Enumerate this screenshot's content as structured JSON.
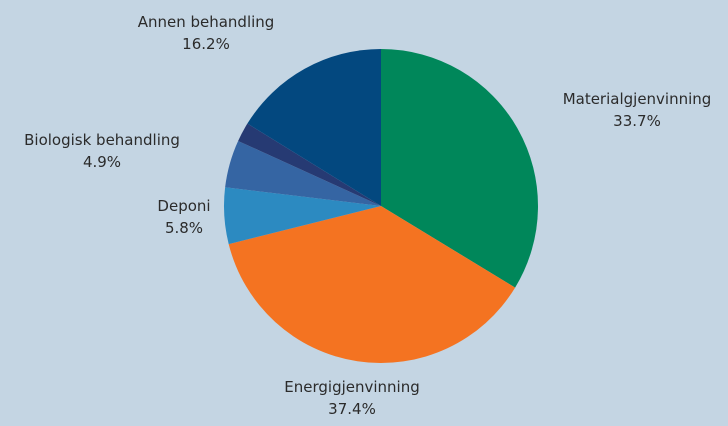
{
  "chart_data": {
    "type": "pie",
    "title": "",
    "start_angle_deg": 0,
    "direction": "clockwise",
    "slices": [
      {
        "label": "Materialgjenvinning",
        "value": 33.7,
        "value_label": "33.7%",
        "color": "#00875a"
      },
      {
        "label": "Energigjenvinning",
        "value": 37.4,
        "value_label": "37.4%",
        "color": "#f47321"
      },
      {
        "label": "Deponi",
        "value": 5.8,
        "value_label": "5.8%",
        "color": "#2c8ac1"
      },
      {
        "label": "Biologisk behandling",
        "value": 4.9,
        "value_label": "4.9%",
        "color": "#3565a3"
      },
      {
        "label": "",
        "value": 2.0,
        "value_label": "",
        "color": "#263a73"
      },
      {
        "label": "Annen behandling",
        "value": 16.2,
        "value_label": "16.2%",
        "color": "#03487f"
      }
    ]
  }
}
